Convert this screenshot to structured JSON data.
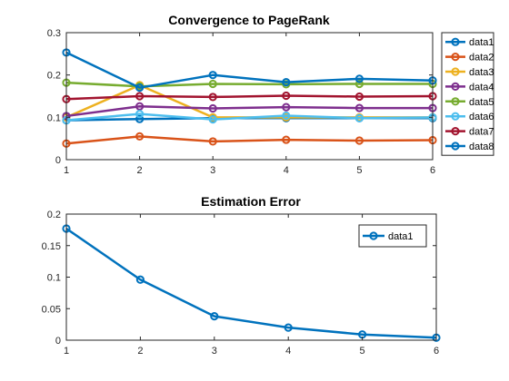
{
  "chart_data": [
    {
      "type": "line",
      "title": "Convergence to PageRank",
      "xlabel": "",
      "ylabel": "",
      "xlim": [
        1,
        6
      ],
      "ylim": [
        0,
        0.3
      ],
      "xticks": [
        "1",
        "2",
        "3",
        "4",
        "5",
        "6"
      ],
      "yticks": [
        "0",
        "0.1",
        "0.2",
        "0.3"
      ],
      "grid": false,
      "legend_position": "outside-right",
      "x": [
        1,
        2,
        3,
        4,
        5,
        6
      ],
      "series": [
        {
          "name": "data1",
          "color": "#0072BD",
          "values": [
            0.093,
            0.096,
            0.098,
            0.098,
            0.098,
            0.098
          ]
        },
        {
          "name": "data2",
          "color": "#D95319",
          "values": [
            0.038,
            0.055,
            0.043,
            0.047,
            0.045,
            0.046
          ]
        },
        {
          "name": "data3",
          "color": "#EDB120",
          "values": [
            0.1,
            0.176,
            0.1,
            0.1,
            0.1,
            0.1
          ]
        },
        {
          "name": "data4",
          "color": "#7E2F8E",
          "values": [
            0.103,
            0.126,
            0.121,
            0.124,
            0.122,
            0.122
          ]
        },
        {
          "name": "data5",
          "color": "#77AC30",
          "values": [
            0.182,
            0.173,
            0.179,
            0.178,
            0.179,
            0.179
          ]
        },
        {
          "name": "data6",
          "color": "#4DBEEE",
          "values": [
            0.093,
            0.108,
            0.095,
            0.104,
            0.098,
            0.1
          ]
        },
        {
          "name": "data7",
          "color": "#A2142F",
          "values": [
            0.143,
            0.15,
            0.148,
            0.151,
            0.149,
            0.15
          ]
        },
        {
          "name": "data8",
          "color": "#0072BD",
          "values": [
            0.253,
            0.17,
            0.2,
            0.183,
            0.191,
            0.187
          ]
        }
      ]
    },
    {
      "type": "line",
      "title": "Estimation Error",
      "xlabel": "",
      "ylabel": "",
      "xlim": [
        1,
        6
      ],
      "ylim": [
        0,
        0.2
      ],
      "xticks": [
        "1",
        "2",
        "3",
        "4",
        "5",
        "6"
      ],
      "yticks": [
        "0",
        "0.05",
        "0.1",
        "0.15",
        "0.2"
      ],
      "grid": false,
      "legend_position": "top-right",
      "x": [
        1,
        2,
        3,
        4,
        5,
        6
      ],
      "series": [
        {
          "name": "data1",
          "color": "#0072BD",
          "values": [
            0.177,
            0.096,
            0.038,
            0.02,
            0.009,
            0.004
          ]
        }
      ]
    }
  ]
}
